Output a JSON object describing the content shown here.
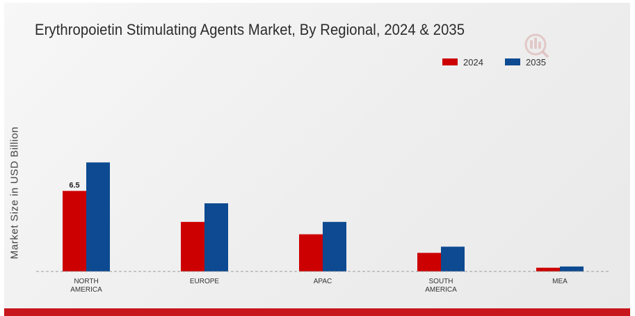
{
  "chart_data": {
    "type": "bar",
    "title": "Erythropoietin Stimulating Agents Market, By Regional, 2024 & 2035",
    "xlabel": "",
    "ylabel": "Market Size in USD Billion",
    "categories": [
      "NORTH AMERICA",
      "EUROPE",
      "APAC",
      "SOUTH AMERICA",
      "MEA"
    ],
    "series": [
      {
        "name": "2024",
        "color": "#cc0000",
        "values": [
          6.5,
          4.0,
          3.0,
          1.5,
          0.3
        ]
      },
      {
        "name": "2035",
        "color": "#0d4a91",
        "values": [
          8.8,
          5.5,
          4.0,
          2.0,
          0.4
        ]
      }
    ],
    "data_labels": [
      {
        "series": 0,
        "index": 0,
        "text": "6.5"
      }
    ],
    "ylim": [
      0,
      12
    ],
    "grid": false,
    "legend_position": "top-right"
  },
  "colors": {
    "accent": "#c8161d"
  }
}
